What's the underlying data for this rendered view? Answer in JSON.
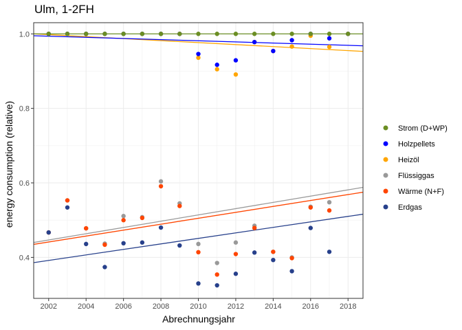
{
  "chart_data": {
    "type": "scatter",
    "title": "Ulm, 1-2FH",
    "xlabel": "Abrechnungsjahr",
    "ylabel": "energy consumption (relative)",
    "xlim": [
      2001.2,
      2018.8
    ],
    "ylim": [
      0.29,
      1.03
    ],
    "x_ticks": [
      2002,
      2004,
      2006,
      2008,
      2010,
      2012,
      2014,
      2016,
      2018
    ],
    "y_ticks": [
      0.4,
      0.6,
      0.8,
      1.0
    ],
    "y_tick_labels": [
      "0.4",
      "0.6",
      "0.8",
      "1.0"
    ],
    "grid": true,
    "legend_position": "right",
    "series": [
      {
        "name": "Strom (D+WP)",
        "color": "#6b8e23",
        "x": [
          2002,
          2003,
          2004,
          2005,
          2006,
          2007,
          2008,
          2009,
          2010,
          2011,
          2012,
          2013,
          2014,
          2015,
          2016,
          2017,
          2018
        ],
        "y": [
          1.0,
          1.0,
          1.0,
          1.0,
          1.0,
          1.0,
          1.0,
          1.0,
          1.0,
          1.0,
          1.0,
          1.0,
          1.0,
          1.0,
          1.0,
          1.0,
          1.0
        ],
        "trend": [
          1.0,
          1.0
        ]
      },
      {
        "name": "Holzpellets",
        "color": "#0000ff",
        "x": [
          2002,
          2003,
          2004,
          2005,
          2006,
          2007,
          2008,
          2009,
          2010,
          2011,
          2012,
          2013,
          2014,
          2015,
          2016,
          2017,
          2018
        ],
        "y": [
          1.0,
          1.0,
          1.0,
          1.0,
          1.0,
          1.0,
          1.0,
          1.0,
          0.946,
          0.917,
          0.929,
          0.978,
          0.954,
          0.983,
          1.0,
          0.988,
          1.0
        ],
        "trend": [
          0.995,
          0.968
        ]
      },
      {
        "name": "Heizöl",
        "color": "#ffa500",
        "x": [
          2002,
          2003,
          2004,
          2005,
          2006,
          2007,
          2008,
          2009,
          2010,
          2011,
          2012,
          2013,
          2014,
          2015,
          2016,
          2017,
          2018
        ],
        "y": [
          1.0,
          1.0,
          1.0,
          1.0,
          1.0,
          1.0,
          1.0,
          1.0,
          0.936,
          0.905,
          0.891,
          0.978,
          0.954,
          0.966,
          0.995,
          0.965,
          1.0
        ],
        "trend": [
          1.0,
          0.953
        ]
      },
      {
        "name": "Flüssiggas",
        "color": "#999999",
        "x": [
          2002,
          2003,
          2004,
          2005,
          2006,
          2007,
          2008,
          2009,
          2010,
          2011,
          2012,
          2013,
          2014,
          2015,
          2016,
          2017
        ],
        "y": [
          0.467,
          0.553,
          0.478,
          0.437,
          0.511,
          0.508,
          0.604,
          0.545,
          0.436,
          0.385,
          0.44,
          0.485,
          0.415,
          0.4,
          0.536,
          0.548
        ],
        "trend": [
          0.44,
          0.588
        ]
      },
      {
        "name": "Wärme (N+F)",
        "color": "#ff4500",
        "x": [
          2002,
          2003,
          2004,
          2005,
          2006,
          2007,
          2008,
          2009,
          2010,
          2011,
          2012,
          2013,
          2014,
          2015,
          2016,
          2017
        ],
        "y": [
          0.467,
          0.553,
          0.478,
          0.434,
          0.5,
          0.506,
          0.591,
          0.538,
          0.414,
          0.354,
          0.409,
          0.479,
          0.415,
          0.398,
          0.534,
          0.526
        ],
        "trend": [
          0.435,
          0.575
        ]
      },
      {
        "name": "Erdgas",
        "color": "#27408b",
        "x": [
          2002,
          2003,
          2004,
          2005,
          2006,
          2007,
          2008,
          2009,
          2010,
          2011,
          2012,
          2013,
          2014,
          2015,
          2016,
          2017
        ],
        "y": [
          0.467,
          0.534,
          0.436,
          0.374,
          0.438,
          0.44,
          0.48,
          0.432,
          0.33,
          0.325,
          0.356,
          0.413,
          0.393,
          0.363,
          0.479,
          0.415
        ],
        "trend": [
          0.386,
          0.516
        ]
      }
    ]
  }
}
